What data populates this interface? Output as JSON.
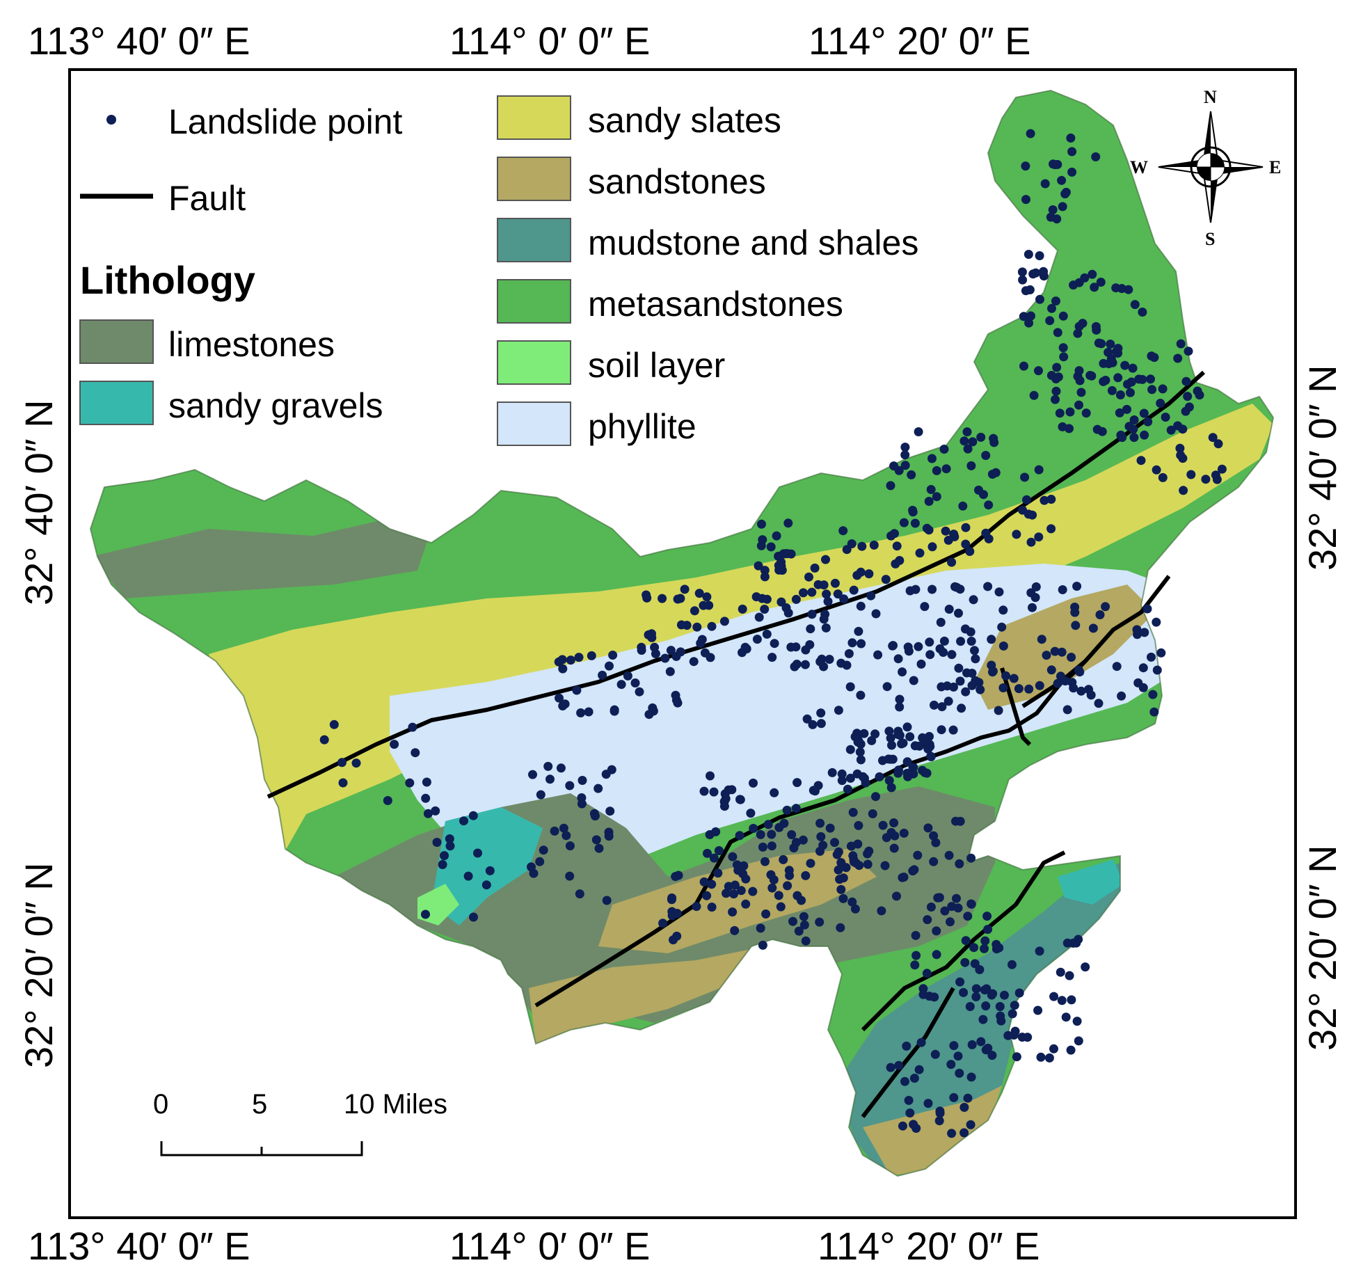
{
  "frame_labels": {
    "top": [
      "113° 40′ 0″ E",
      "114° 0′ 0″ E",
      "114° 20′ 0″ E"
    ],
    "bottom": [
      "113° 40′ 0″ E",
      "114° 0′ 0″ E",
      "114° 20′ 0″ E"
    ],
    "left": [
      "32° 40′ 0″ N",
      "32° 20′ 0″ N"
    ],
    "right": [
      "32° 40′ 0″ N",
      "32° 20′ 0″ N"
    ]
  },
  "legend": {
    "landslide_label": "Landslide point",
    "fault_label": "Fault",
    "lithology_title": "Lithology",
    "classes": [
      {
        "label": "limestones",
        "color": "#6f8a6a"
      },
      {
        "label": "sandy gravels",
        "color": "#37b8ad"
      },
      {
        "label": "sandy slates",
        "color": "#d6d85a"
      },
      {
        "label": "sandstones",
        "color": "#b4a862"
      },
      {
        "label": "mudstone and shales",
        "color": "#4f968c"
      },
      {
        "label": "metasandstones",
        "color": "#55b854"
      },
      {
        "label": "soil layer",
        "color": "#7fec7a"
      },
      {
        "label": "phyllite",
        "color": "#d3e6fa"
      }
    ],
    "point_color": "#0d1f55",
    "fault_color": "#000000"
  },
  "scale_bar": {
    "ticks": [
      "0",
      "5",
      "10 Miles"
    ]
  },
  "compass": {
    "n": "N",
    "s": "S",
    "e": "E",
    "w": "W"
  }
}
